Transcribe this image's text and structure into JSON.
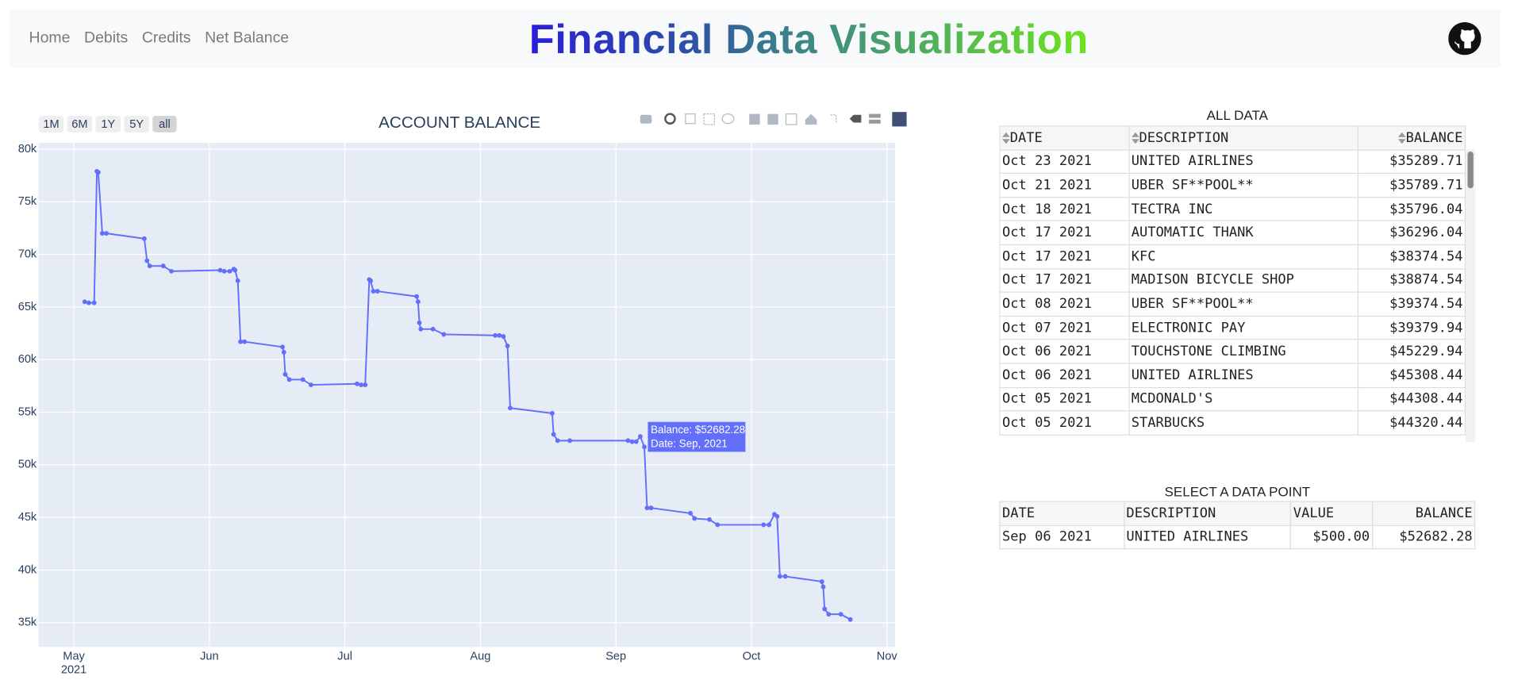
{
  "nav": {
    "links": [
      "Home",
      "Debits",
      "Credits",
      "Net Balance"
    ],
    "title": "Financial Data Visualization"
  },
  "chart_data": {
    "type": "line",
    "title": "ACCOUNT BALANCE",
    "range_buttons": [
      "1M",
      "6M",
      "1Y",
      "5Y",
      "all"
    ],
    "x": [
      5.08,
      5.11,
      5.15,
      5.17,
      5.18,
      5.21,
      5.24,
      5.52,
      5.54,
      5.56,
      5.66,
      5.72,
      6.08,
      6.11,
      6.15,
      6.18,
      6.19,
      6.21,
      6.23,
      6.26,
      6.54,
      6.55,
      6.56,
      6.59,
      6.69,
      6.75,
      7.09,
      7.12,
      7.15,
      7.18,
      7.19,
      7.21,
      7.24,
      7.53,
      7.54,
      7.55,
      7.56,
      7.65,
      7.73,
      8.11,
      8.14,
      8.17,
      8.2,
      8.22,
      8.53,
      8.54,
      8.57,
      8.66,
      9.09,
      9.12,
      9.15,
      9.18,
      9.21,
      9.23,
      9.26,
      9.55,
      9.58,
      9.69,
      9.75,
      10.09,
      10.13,
      10.17,
      10.19,
      10.21,
      10.25,
      10.52,
      10.53,
      10.54,
      10.57,
      10.66,
      10.73
    ],
    "values": [
      65500,
      65400,
      65400,
      77900,
      77800,
      72000,
      72000,
      71500,
      69400,
      68900,
      68900,
      68400,
      68500,
      68400,
      68400,
      68600,
      68500,
      67500,
      61700,
      61700,
      61200,
      60700,
      58600,
      58100,
      58100,
      57600,
      57700,
      57600,
      57600,
      67600,
      67500,
      66500,
      66500,
      66000,
      65500,
      63500,
      62900,
      62900,
      62400,
      62300,
      62300,
      62200,
      61300,
      55400,
      54900,
      52900,
      52300,
      52300,
      52300,
      52200,
      52200,
      52700,
      51700,
      45900,
      45900,
      45400,
      44900,
      44800,
      44300,
      44300,
      44300,
      45300,
      45100,
      39400,
      39400,
      38900,
      38400,
      36300,
      35800,
      35800,
      35300
    ],
    "color": "#636efa",
    "xlim": [
      4.74,
      11.06
    ],
    "xticks": [
      {
        "value": 5,
        "label": "May"
      },
      {
        "value": 6,
        "label": "Jun"
      },
      {
        "value": 7,
        "label": "Jul"
      },
      {
        "value": 8,
        "label": "Aug"
      },
      {
        "value": 9,
        "label": "Sep"
      },
      {
        "value": 10,
        "label": "Oct"
      },
      {
        "value": 11,
        "label": "Nov"
      }
    ],
    "x_year_label": "2021",
    "ylim": [
      32700,
      80600
    ],
    "yticks": [
      {
        "value": 35000,
        "label": "35k"
      },
      {
        "value": 40000,
        "label": "40k"
      },
      {
        "value": 45000,
        "label": "45k"
      },
      {
        "value": 50000,
        "label": "50k"
      },
      {
        "value": 55000,
        "label": "55k"
      },
      {
        "value": 60000,
        "label": "60k"
      },
      {
        "value": 65000,
        "label": "65k"
      },
      {
        "value": 70000,
        "label": "70k"
      },
      {
        "value": 75000,
        "label": "75k"
      },
      {
        "value": 80000,
        "label": "80k"
      }
    ],
    "grid": true,
    "hover_label": [
      "Balance: $52682.28",
      "Date: Sep, 2021"
    ]
  },
  "all_data": {
    "title": "ALL DATA",
    "columns": [
      "DATE",
      "DESCRIPTION",
      "BALANCE"
    ],
    "rows": [
      [
        "Oct 23 2021",
        "UNITED AIRLINES",
        "$35289.71"
      ],
      [
        "Oct 21 2021",
        "UBER SF**POOL**",
        "$35789.71"
      ],
      [
        "Oct 18 2021",
        "TECTRA INC",
        "$35796.04"
      ],
      [
        "Oct 17 2021",
        "AUTOMATIC THANK",
        "$36296.04"
      ],
      [
        "Oct 17 2021",
        "KFC",
        "$38374.54"
      ],
      [
        "Oct 17 2021",
        "MADISON BICYCLE SHOP",
        "$38874.54"
      ],
      [
        "Oct 08 2021",
        "UBER SF**POOL**",
        "$39374.54"
      ],
      [
        "Oct 07 2021",
        "ELECTRONIC PAY",
        "$39379.94"
      ],
      [
        "Oct 06 2021",
        "TOUCHSTONE CLIMBING",
        "$45229.94"
      ],
      [
        "Oct 06 2021",
        "UNITED AIRLINES",
        "$45308.44"
      ],
      [
        "Oct 05 2021",
        "MCDONALD'S",
        "$44308.44"
      ],
      [
        "Oct 05 2021",
        "STARBUCKS",
        "$44320.44"
      ]
    ]
  },
  "selected": {
    "title": "SELECT A DATA POINT",
    "columns": [
      "DATE",
      "DESCRIPTION",
      "VALUE",
      "BALANCE"
    ],
    "rows": [
      [
        "Sep 06 2021",
        "UNITED AIRLINES",
        "$500.00",
        "$52682.28"
      ]
    ]
  }
}
